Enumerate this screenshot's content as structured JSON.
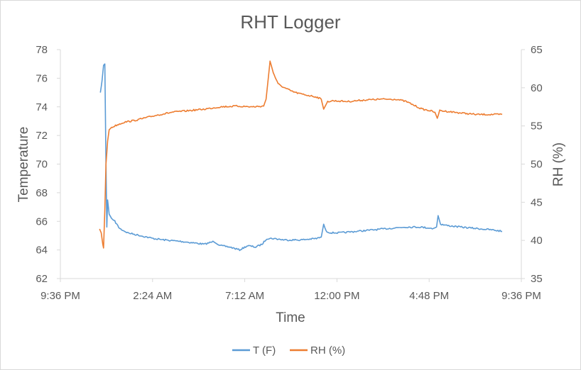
{
  "chart_data": {
    "type": "line",
    "title": "RHT Logger",
    "xlabel": "Time",
    "ylabel_left": "Temperature",
    "ylabel_right": "RH (%)",
    "x_ticks": [
      "9:36 PM",
      "2:24 AM",
      "7:12 AM",
      "12:00 PM",
      "4:48 PM",
      "9:36 PM"
    ],
    "x_unit": "hours from 9:36 PM",
    "xlim": [
      0,
      28.8
    ],
    "y_left_ticks": [
      "62",
      "64",
      "66",
      "68",
      "70",
      "72",
      "74",
      "76",
      "78"
    ],
    "y_right_ticks": [
      "35",
      "40",
      "45",
      "50",
      "55",
      "60",
      "65"
    ],
    "ylim_left": [
      62,
      78
    ],
    "ylim_right": [
      35,
      65
    ],
    "legend_position": "bottom",
    "grid": false,
    "series": [
      {
        "name": "T (F)",
        "axis": "left",
        "color": "#5B9BD5",
        "points": [
          [
            2.5,
            75.0
          ],
          [
            2.6,
            75.8
          ],
          [
            2.7,
            76.9
          ],
          [
            2.78,
            77.0
          ],
          [
            2.85,
            70.0
          ],
          [
            2.9,
            65.6
          ],
          [
            2.95,
            67.5
          ],
          [
            3.05,
            66.5
          ],
          [
            3.2,
            66.2
          ],
          [
            3.4,
            66.0
          ],
          [
            3.7,
            65.5
          ],
          [
            4.2,
            65.2
          ],
          [
            5.0,
            65.0
          ],
          [
            5.8,
            64.8
          ],
          [
            6.5,
            64.7
          ],
          [
            7.5,
            64.6
          ],
          [
            8.3,
            64.5
          ],
          [
            9.0,
            64.4
          ],
          [
            9.6,
            64.6
          ],
          [
            10.0,
            64.3
          ],
          [
            10.6,
            64.2
          ],
          [
            11.2,
            64.0
          ],
          [
            11.7,
            64.3
          ],
          [
            12.2,
            64.2
          ],
          [
            12.6,
            64.4
          ],
          [
            12.9,
            64.8
          ],
          [
            13.3,
            64.8
          ],
          [
            14.0,
            64.7
          ],
          [
            15.0,
            64.7
          ],
          [
            16.0,
            64.8
          ],
          [
            16.3,
            64.9
          ],
          [
            16.45,
            65.8
          ],
          [
            16.6,
            65.3
          ],
          [
            16.9,
            65.2
          ],
          [
            17.5,
            65.2
          ],
          [
            18.5,
            65.3
          ],
          [
            19.5,
            65.4
          ],
          [
            20.5,
            65.5
          ],
          [
            21.5,
            65.6
          ],
          [
            22.5,
            65.6
          ],
          [
            23.3,
            65.5
          ],
          [
            23.5,
            65.6
          ],
          [
            23.6,
            66.4
          ],
          [
            23.75,
            65.8
          ],
          [
            24.2,
            65.7
          ],
          [
            25.0,
            65.6
          ],
          [
            26.0,
            65.5
          ],
          [
            27.0,
            65.4
          ],
          [
            27.6,
            65.3
          ]
        ]
      },
      {
        "name": "RH (%)",
        "axis": "right",
        "color": "#ED7D31",
        "points": [
          [
            2.45,
            41.5
          ],
          [
            2.55,
            41.0
          ],
          [
            2.65,
            39.5
          ],
          [
            2.7,
            39.0
          ],
          [
            2.78,
            44.0
          ],
          [
            2.85,
            50.0
          ],
          [
            2.95,
            53.0
          ],
          [
            3.05,
            54.5
          ],
          [
            3.2,
            54.8
          ],
          [
            3.5,
            55.1
          ],
          [
            4.0,
            55.5
          ],
          [
            4.6,
            55.7
          ],
          [
            5.2,
            56.0
          ],
          [
            6.0,
            56.4
          ],
          [
            7.0,
            56.8
          ],
          [
            8.0,
            57.0
          ],
          [
            9.0,
            57.2
          ],
          [
            10.0,
            57.5
          ],
          [
            11.0,
            57.6
          ],
          [
            12.0,
            57.5
          ],
          [
            12.7,
            57.6
          ],
          [
            12.85,
            58.5
          ],
          [
            13.0,
            61.5
          ],
          [
            13.1,
            63.5
          ],
          [
            13.3,
            62.0
          ],
          [
            13.6,
            60.5
          ],
          [
            14.0,
            60.0
          ],
          [
            14.5,
            59.5
          ],
          [
            15.0,
            59.2
          ],
          [
            15.5,
            59.0
          ],
          [
            16.0,
            58.8
          ],
          [
            16.3,
            58.5
          ],
          [
            16.45,
            57.2
          ],
          [
            16.7,
            58.2
          ],
          [
            17.0,
            58.3
          ],
          [
            18.0,
            58.2
          ],
          [
            19.0,
            58.4
          ],
          [
            20.0,
            58.5
          ],
          [
            21.0,
            58.5
          ],
          [
            21.6,
            58.2
          ],
          [
            22.0,
            57.8
          ],
          [
            22.6,
            57.2
          ],
          [
            23.1,
            57.0
          ],
          [
            23.4,
            56.8
          ],
          [
            23.55,
            56.0
          ],
          [
            23.7,
            57.0
          ],
          [
            24.2,
            56.9
          ],
          [
            25.0,
            56.7
          ],
          [
            26.0,
            56.5
          ],
          [
            27.0,
            56.5
          ],
          [
            27.6,
            56.5
          ]
        ]
      }
    ]
  }
}
